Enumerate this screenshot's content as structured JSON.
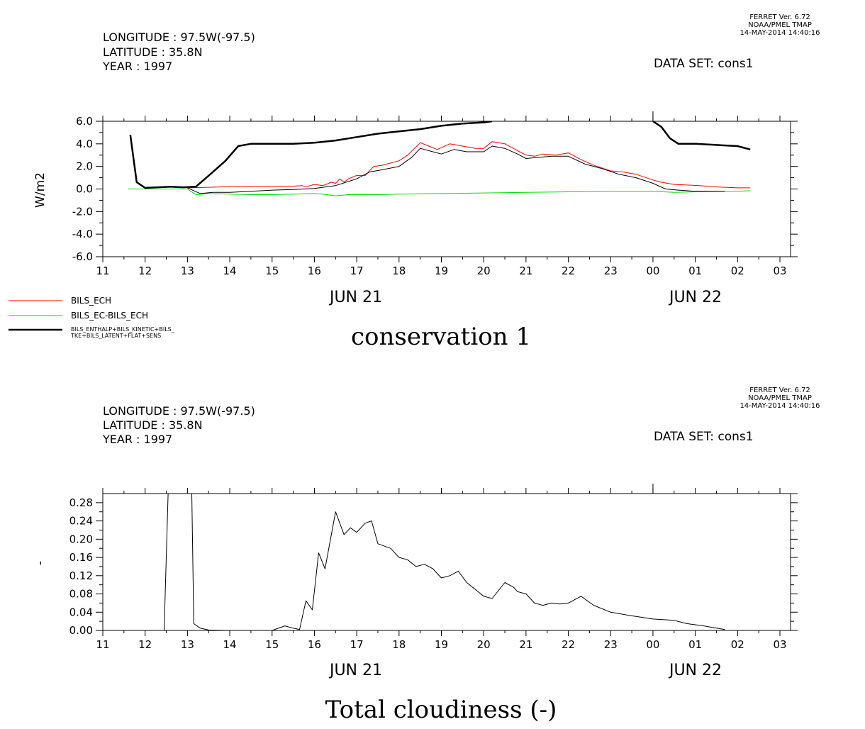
{
  "panels": [
    {
      "ferret": {
        "version": "FERRET Ver. 6.72",
        "org": "NOAA/PMEL TMAP",
        "date": "14-MAY-2014 14:40:16"
      },
      "header": {
        "longitude": "LONGITUDE : 97.5W(-97.5)",
        "latitude": "LATITUDE : 35.8N",
        "year": "YEAR : 1997",
        "dataset": "DATA SET: cons1"
      },
      "legend": [
        {
          "label": "BILS_ECH",
          "color": "#ff0000"
        },
        {
          "label": "BILS_EC-BILS_ECH",
          "color": "#00dd00"
        },
        {
          "label": "BILS_ENTHALP+BILS_KINETIC+BILS_",
          "label2": "TKE+BILS_LATENT+FLAT+SENS",
          "color": "#000000"
        }
      ]
    },
    {
      "ferret": {
        "version": "FERRET Ver. 6.72",
        "org": "NOAA/PMEL TMAP",
        "date": "14-MAY-2014 14:40:16"
      },
      "header": {
        "longitude": "LONGITUDE : 97.5W(-97.5)",
        "latitude": "LATITUDE : 35.8N",
        "year": "YEAR : 1997",
        "dataset": "DATA SET: cons1"
      }
    }
  ],
  "chart_data": [
    {
      "type": "line",
      "title": "conservation 1",
      "ylabel": "W/m2",
      "xlabel": "",
      "xlim": [
        11,
        27
      ],
      "ylim": [
        -6.0,
        6.0
      ],
      "x_ticks": [
        "11",
        "12",
        "13",
        "14",
        "15",
        "16",
        "17",
        "18",
        "19",
        "20",
        "21",
        "22",
        "23",
        "00",
        "01",
        "02",
        "03"
      ],
      "y_ticks": [
        "-6.0",
        "-4.0",
        "-2.0",
        "0.0",
        "2.0",
        "4.0",
        "6.0"
      ],
      "date_labels": [
        {
          "label": "JUN 21",
          "at": 16.5
        },
        {
          "label": "JUN 22",
          "at": 24.5
        }
      ],
      "legend_position": "bottom-left",
      "series": [
        {
          "name": "BILS_ECH",
          "color": "#ff0000",
          "x": [
            13.0,
            13.5,
            14.0,
            14.5,
            15.0,
            15.5,
            15.7,
            15.8,
            16.0,
            16.2,
            16.4,
            16.5,
            16.6,
            16.7,
            16.8,
            17.0,
            17.2,
            17.4,
            17.6,
            17.8,
            18.0,
            18.2,
            18.5,
            18.7,
            18.9,
            19.2,
            19.5,
            19.8,
            20.0,
            20.2,
            20.5,
            20.7,
            21.0,
            21.2,
            21.4,
            21.7,
            22.0,
            22.3,
            22.6,
            23.0,
            23.3,
            23.6,
            24.0,
            24.2,
            24.5,
            24.8,
            25.1,
            25.4,
            25.7,
            26.0,
            26.3
          ],
          "y": [
            0.1,
            0.15,
            0.2,
            0.22,
            0.25,
            0.25,
            0.3,
            0.2,
            0.4,
            0.3,
            0.6,
            0.5,
            0.9,
            0.6,
            0.9,
            1.2,
            1.2,
            2.0,
            2.1,
            2.3,
            2.5,
            3.0,
            4.1,
            3.8,
            3.5,
            4.0,
            3.8,
            3.6,
            3.6,
            4.2,
            4.0,
            3.6,
            3.0,
            2.9,
            3.1,
            3.0,
            3.2,
            2.6,
            2.1,
            1.6,
            1.5,
            1.3,
            0.8,
            0.6,
            0.4,
            0.35,
            0.3,
            0.2,
            0.15,
            0.1,
            0.1
          ]
        },
        {
          "name": "BILS_EC-BILS_ECH",
          "color": "#00dd00",
          "x": [
            11.6,
            12.0,
            13.0,
            13.2,
            13.5,
            14.0,
            14.5,
            15.0,
            15.5,
            16.0,
            16.3,
            16.5,
            16.8,
            17.0,
            17.5,
            18.0,
            19.0,
            20.0,
            21.0,
            22.0,
            23.0,
            24.0,
            24.5,
            25.0,
            26.0,
            26.3
          ],
          "y": [
            0.0,
            0.0,
            0.0,
            -0.5,
            -0.4,
            -0.45,
            -0.5,
            -0.5,
            -0.45,
            -0.4,
            -0.5,
            -0.6,
            -0.5,
            -0.5,
            -0.5,
            -0.45,
            -0.4,
            -0.35,
            -0.3,
            -0.25,
            -0.2,
            -0.2,
            -0.3,
            -0.25,
            -0.2,
            -0.15
          ]
        },
        {
          "name": "BILS_ENTHALP+BILS_KINETIC+BILS_TKE+BILS_LATENT+FLAT+SENS",
          "color": "#000000",
          "bold": true,
          "segments": [
            {
              "x": [
                11.65,
                11.8,
                12.0,
                12.3,
                12.6,
                12.9,
                13.2,
                13.6,
                13.9,
                14.2,
                14.5,
                15.0,
                15.5,
                16.0,
                16.5,
                17.0,
                17.5,
                18.0,
                18.5,
                19.0,
                19.5,
                20.0,
                20.2
              ],
              "y": [
                4.8,
                0.6,
                0.1,
                0.15,
                0.2,
                0.15,
                0.2,
                1.5,
                2.5,
                3.8,
                4.0,
                4.0,
                4.0,
                4.1,
                4.3,
                4.6,
                4.9,
                5.1,
                5.3,
                5.6,
                5.8,
                5.9,
                6.0
              ]
            },
            {
              "x": [
                24.0,
                24.2,
                24.4,
                24.6,
                25.0,
                25.5,
                26.0,
                26.3
              ],
              "y": [
                6.0,
                5.5,
                4.5,
                4.0,
                4.0,
                3.9,
                3.8,
                3.5
              ]
            }
          ]
        },
        {
          "name": "",
          "color": "#000000",
          "x": [
            13.0,
            13.3,
            13.6,
            14.0,
            14.5,
            15.0,
            15.5,
            16.0,
            16.5,
            17.0,
            17.3,
            17.6,
            18.0,
            18.3,
            18.5,
            18.8,
            19.0,
            19.3,
            19.6,
            20.0,
            20.2,
            20.5,
            20.8,
            21.0,
            21.3,
            21.6,
            22.0,
            22.4,
            22.8,
            23.2,
            23.6,
            24.0,
            24.3,
            24.6,
            25.0,
            25.4,
            25.7
          ],
          "y": [
            0.1,
            -0.4,
            -0.3,
            -0.3,
            -0.2,
            -0.1,
            -0.05,
            0.05,
            0.3,
            0.9,
            1.5,
            1.7,
            2.0,
            2.8,
            3.6,
            3.3,
            3.1,
            3.5,
            3.3,
            3.3,
            3.8,
            3.6,
            3.1,
            2.7,
            2.8,
            2.9,
            2.9,
            2.2,
            1.8,
            1.3,
            1.0,
            0.5,
            0.0,
            -0.1,
            -0.2,
            -0.2,
            -0.2
          ]
        }
      ]
    },
    {
      "type": "line",
      "title": "Total cloudiness (-)",
      "ylabel": "-",
      "xlabel": "",
      "xlim": [
        11,
        27
      ],
      "ylim": [
        0.0,
        0.3
      ],
      "x_ticks": [
        "11",
        "12",
        "13",
        "14",
        "15",
        "16",
        "17",
        "18",
        "19",
        "20",
        "21",
        "22",
        "23",
        "00",
        "01",
        "02",
        "03"
      ],
      "y_ticks": [
        "0.00",
        "0.04",
        "0.08",
        "0.12",
        "0.16",
        "0.20",
        "0.24",
        "0.28"
      ],
      "date_labels": [
        {
          "label": "JUN 21",
          "at": 16.5
        },
        {
          "label": "JUN 22",
          "at": 24.5
        }
      ],
      "series": [
        {
          "name": "",
          "color": "#000000",
          "x": [
            12.45,
            12.55,
            13.1,
            13.15,
            13.3,
            13.5,
            14.0,
            15.0,
            15.3,
            15.5,
            15.65,
            15.8,
            15.95,
            16.1,
            16.25,
            16.5,
            16.7,
            16.85,
            17.0,
            17.2,
            17.35,
            17.5,
            17.8,
            18.0,
            18.2,
            18.4,
            18.6,
            18.8,
            19.0,
            19.2,
            19.4,
            19.6,
            19.8,
            20.0,
            20.2,
            20.5,
            20.7,
            20.8,
            21.0,
            21.2,
            21.4,
            21.6,
            21.8,
            22.0,
            22.3,
            22.6,
            23.0,
            23.5,
            24.0,
            24.5,
            24.8,
            25.2,
            25.5,
            25.7
          ],
          "y": [
            0.0,
            0.32,
            0.32,
            0.015,
            0.005,
            0.001,
            0.0,
            0.0,
            0.01,
            0.005,
            0.002,
            0.065,
            0.045,
            0.17,
            0.135,
            0.26,
            0.21,
            0.225,
            0.215,
            0.235,
            0.24,
            0.19,
            0.18,
            0.16,
            0.155,
            0.14,
            0.145,
            0.135,
            0.115,
            0.12,
            0.13,
            0.105,
            0.09,
            0.075,
            0.07,
            0.105,
            0.095,
            0.085,
            0.08,
            0.06,
            0.055,
            0.06,
            0.058,
            0.06,
            0.075,
            0.055,
            0.04,
            0.032,
            0.025,
            0.022,
            0.015,
            0.01,
            0.005,
            0.002
          ]
        }
      ]
    }
  ]
}
